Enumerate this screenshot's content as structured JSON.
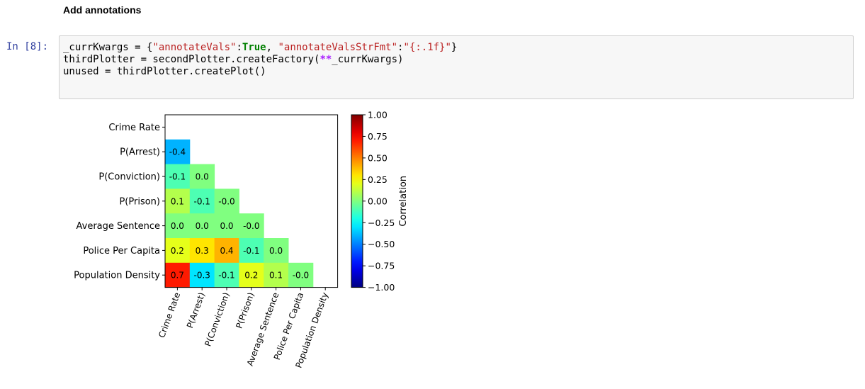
{
  "markdown": {
    "heading": "Add annotations"
  },
  "cell": {
    "prompt": "In [8]:",
    "code": {
      "line1": [
        "_currKwargs = {",
        "\"annotateVals\"",
        ":",
        "True",
        ", ",
        "\"annotateValsStrFmt\"",
        ":",
        "\"{:.1f}\"",
        "}"
      ],
      "line2": [
        "thirdPlotter = secondPlotter.createFactory(",
        "**",
        "_currKwargs)"
      ],
      "line3": [
        "unused = thirdPlotter.createPlot()"
      ]
    }
  },
  "chart_data": {
    "type": "heatmap",
    "labels": [
      "Crime Rate",
      "P(Arrest)",
      "P(Conviction)",
      "P(Prison)",
      "Average Sentence",
      "Police Per Capita",
      "Population Density"
    ],
    "values": [
      [
        null,
        null,
        null,
        null,
        null,
        null,
        null
      ],
      [
        -0.4,
        null,
        null,
        null,
        null,
        null,
        null
      ],
      [
        -0.1,
        0.0,
        null,
        null,
        null,
        null,
        null
      ],
      [
        0.1,
        -0.1,
        -0.0,
        null,
        null,
        null,
        null
      ],
      [
        0.0,
        0.0,
        0.0,
        -0.0,
        null,
        null,
        null
      ],
      [
        0.2,
        0.3,
        0.4,
        -0.1,
        0.0,
        null,
        null
      ],
      [
        0.7,
        -0.3,
        -0.1,
        0.2,
        0.1,
        -0.0,
        null
      ]
    ],
    "annotations": [
      [
        null,
        null,
        null,
        null,
        null,
        null,
        null
      ],
      [
        "-0.4",
        null,
        null,
        null,
        null,
        null,
        null
      ],
      [
        "-0.1",
        "0.0",
        null,
        null,
        null,
        null,
        null
      ],
      [
        "0.1",
        "-0.1",
        "-0.0",
        null,
        null,
        null,
        null
      ],
      [
        "0.0",
        "0.0",
        "0.0",
        "-0.0",
        null,
        null,
        null
      ],
      [
        "0.2",
        "0.3",
        "0.4",
        "-0.1",
        "0.0",
        null,
        null
      ],
      [
        "0.7",
        "-0.3",
        "-0.1",
        "0.2",
        "0.1",
        "-0.0",
        null
      ]
    ],
    "colormap": "jet",
    "vmin": -1.0,
    "vmax": 1.0,
    "colorbar_label": "Correlation",
    "colorbar_ticks": [
      "1.00",
      "0.75",
      "0.50",
      "0.25",
      "0.00",
      "−0.25",
      "−0.50",
      "−0.75",
      "−1.00"
    ],
    "mask": "upper-triangle-including-diagonal"
  }
}
